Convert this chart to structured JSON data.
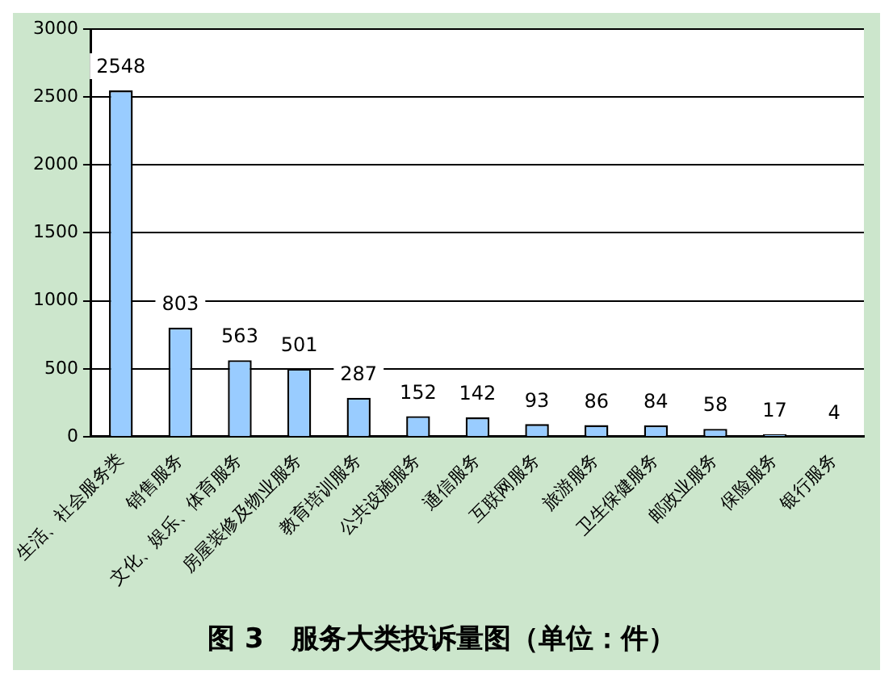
{
  "chart_data": {
    "type": "bar",
    "title": "图 3　服务大类投诉量图（单位：件）",
    "categories": [
      "生活、社会服务类",
      "销售服务",
      "文化、娱乐、体育服务",
      "房屋装修及物业服务",
      "教育培训服务",
      "公共设施服务",
      "通信服务",
      "互联网服务",
      "旅游服务",
      "卫生保健服务",
      "邮政业服务",
      "保险服务",
      "银行服务"
    ],
    "values": [
      2548,
      803,
      563,
      501,
      287,
      152,
      142,
      93,
      86,
      84,
      58,
      17,
      4
    ],
    "color": "#99ccff",
    "ylim": [
      0,
      3000
    ],
    "yticks": [
      0,
      500,
      1000,
      1500,
      2000,
      2500,
      3000
    ],
    "grid": "y",
    "data_labels": true
  }
}
